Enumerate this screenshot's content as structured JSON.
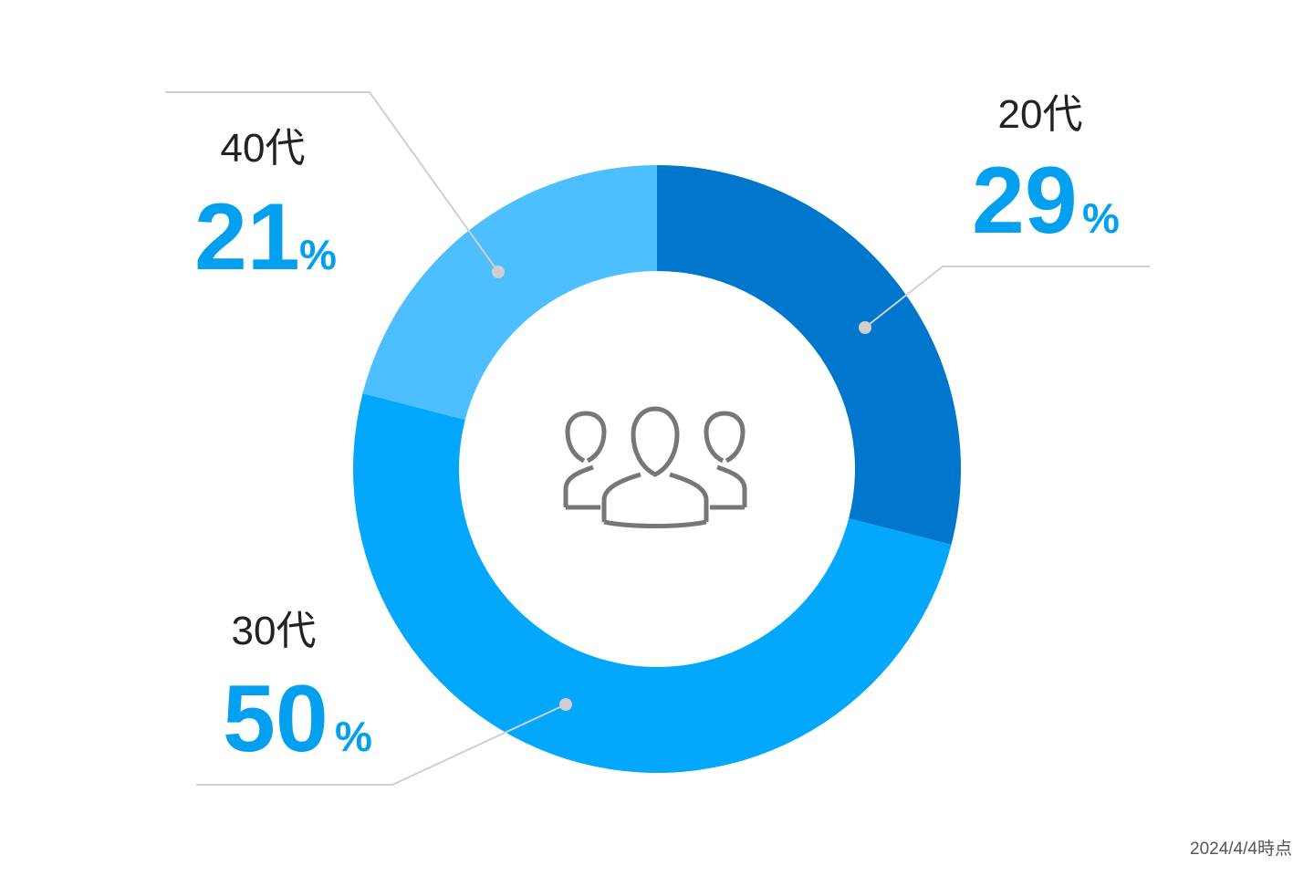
{
  "chart_data": {
    "type": "donut",
    "categories": [
      "20代",
      "30代",
      "40代"
    ],
    "values": [
      29,
      50,
      21
    ],
    "unit": "%",
    "colors": [
      "#0077cc",
      "#03a7fb",
      "#4dbeff"
    ],
    "value_color": "#03a0f0",
    "note": "2024/4/4時点"
  }
}
